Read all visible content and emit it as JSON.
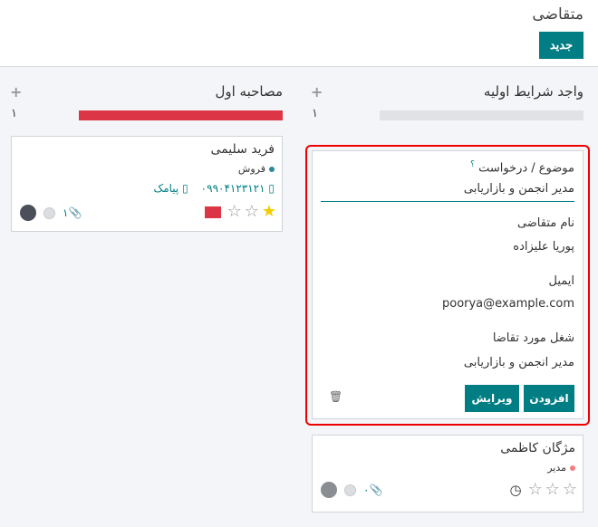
{
  "page": {
    "title": "متقاضی",
    "new_label": "جدید"
  },
  "columns": [
    {
      "title": "واجد شرایط اولیه",
      "count": "۱",
      "progress_color": "#e0e2e6"
    },
    {
      "title": "مصاحبه اول",
      "count": "۱",
      "progress_color": "#dc3545"
    }
  ],
  "quick_create": {
    "subject_label": "موضوع / درخواست",
    "help": "؟",
    "subject_value": "مدیر انجمن و بازاریابی",
    "name_label": "نام متقاضی",
    "name_value": "پوریا علیزاده",
    "email_label": "ایمیل",
    "email_value": "poorya@example.com",
    "job_label": "شغل مورد تقاضا",
    "job_value": "مدیر انجمن و بازاریابی",
    "add_label": "افزودن",
    "edit_label": "ویرایش"
  },
  "cards": [
    {
      "name": "فرید سلیمی",
      "tag": "فروش",
      "tag_color": "#2a8a9a",
      "phone": "۰۹۹۰۴۱۲۳۱۲۱",
      "sms": "پیامک",
      "attachments": "۱",
      "stars": 1
    },
    {
      "name": "مژگان کاظمی",
      "tag": "مدیر",
      "tag_color": "#f08080",
      "attachments": "۰",
      "stars": 0
    }
  ]
}
